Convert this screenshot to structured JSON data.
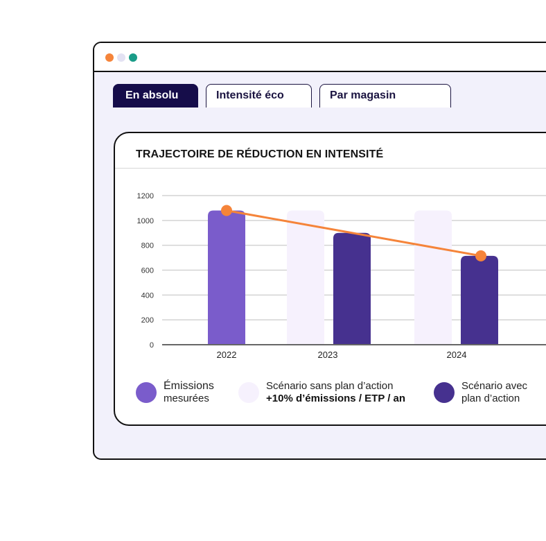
{
  "window": {
    "dots": [
      {
        "name": "orange",
        "color": "#f5843a"
      },
      {
        "name": "lavender",
        "color": "#e3e2f3"
      },
      {
        "name": "teal",
        "color": "#1a9c88"
      }
    ]
  },
  "tabs": [
    {
      "label": "En absolu",
      "active": true
    },
    {
      "label": "Intensité éco",
      "active": false
    },
    {
      "label": "Par magasin",
      "active": false
    }
  ],
  "card": {
    "title": "TRAJECTOIRE DE RÉDUCTION EN INTENSITÉ"
  },
  "legend": [
    {
      "line1": "Émissions",
      "line2": "mesurées",
      "line2_bold": false,
      "color": "#7a5ccb"
    },
    {
      "line1": "Scénario sans plan d’action",
      "line2": "+10% d’émissions / ETP / an",
      "line2_bold": true,
      "color": "#f6f1fd"
    },
    {
      "line1": "Scénario avec",
      "line2": "plan d’action",
      "line2_bold": false,
      "color": "#46318f"
    }
  ],
  "chart_data": {
    "type": "bar",
    "title": "TRAJECTOIRE DE RÉDUCTION EN INTENSITÉ",
    "xlabel": "",
    "ylabel": "",
    "ylim": [
      0,
      1200
    ],
    "yticks": [
      0,
      200,
      400,
      600,
      800,
      1000,
      1200
    ],
    "grid": true,
    "categories": [
      "2022",
      "2023",
      "2024"
    ],
    "series": [
      {
        "name": "Émissions mesurées",
        "color": "#7a5ccb",
        "values": [
          1080,
          null,
          null
        ]
      },
      {
        "name": "Scénario sans plan d’action (+10% d’émissions / ETP / an)",
        "color": "#f6f1fd",
        "values": [
          null,
          1080,
          1080
        ]
      },
      {
        "name": "Scénario avec plan d’action",
        "color": "#46318f",
        "values": [
          null,
          900,
          715
        ]
      }
    ],
    "line": {
      "name": "Trajectoire",
      "color": "#f5843a",
      "points": [
        {
          "x": "2022",
          "y": 1080
        },
        {
          "x": "2024",
          "y": 715
        }
      ]
    },
    "legend_position": "bottom"
  }
}
